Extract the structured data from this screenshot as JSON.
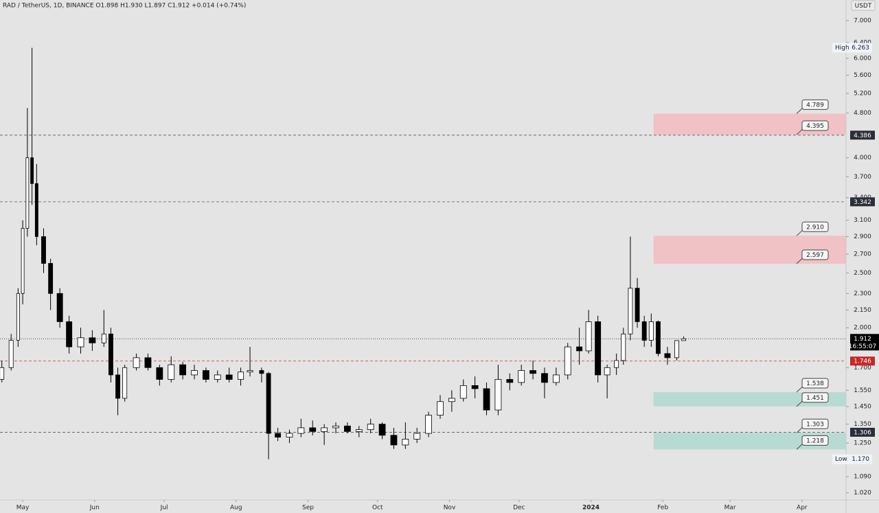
{
  "chart_data": {
    "type": "candlestick",
    "title": "RAD / TetherUS, 1D, BINANCE  O1.898 H1.930 L1.897 C1.912 +0.014 (+0.74%)",
    "y_unit": "USDT",
    "log_scale": true,
    "up_color": "#ffffff",
    "down_color": "#000000",
    "wick_color": "#000000",
    "x": [
      -9,
      -5,
      -2,
      0,
      2,
      4,
      6,
      9,
      12,
      16,
      20,
      25,
      30,
      35,
      38,
      41,
      44,
      49,
      54,
      59,
      64,
      69,
      74,
      79,
      84,
      89,
      94,
      98,
      103,
      106,
      110,
      115,
      120,
      125,
      130,
      135,
      140,
      145,
      150,
      155,
      160,
      165,
      170,
      175,
      180,
      185,
      190,
      195,
      200,
      205,
      210,
      215,
      220,
      225,
      230,
      235,
      240,
      244,
      248,
      252,
      256,
      259,
      262,
      265,
      268,
      271,
      274,
      278,
      282,
      285
    ],
    "open": [
      1.62,
      1.7,
      1.9,
      2.3,
      3.0,
      4.0,
      3.6,
      2.9,
      2.6,
      2.3,
      2.05,
      1.85,
      1.92,
      1.88,
      1.95,
      1.65,
      1.5,
      1.7,
      1.77,
      1.7,
      1.62,
      1.72,
      1.65,
      1.68,
      1.62,
      1.65,
      1.62,
      1.67,
      1.68,
      1.66,
      1.3,
      1.28,
      1.3,
      1.33,
      1.31,
      1.33,
      1.34,
      1.31,
      1.32,
      1.35,
      1.29,
      1.24,
      1.27,
      1.3,
      1.4,
      1.48,
      1.5,
      1.58,
      1.56,
      1.43,
      1.62,
      1.6,
      1.68,
      1.66,
      1.6,
      1.65,
      1.85,
      1.82,
      2.05,
      1.65,
      1.7,
      1.75,
      1.95,
      2.35,
      2.05,
      1.9,
      2.05,
      1.8,
      1.77,
      1.898
    ],
    "high": [
      1.75,
      1.95,
      2.35,
      3.1,
      4.9,
      6.263,
      3.9,
      3.0,
      2.65,
      2.35,
      2.1,
      2.0,
      1.98,
      2.15,
      2.0,
      1.7,
      1.72,
      1.8,
      1.8,
      1.72,
      1.78,
      1.74,
      1.72,
      1.7,
      1.68,
      1.7,
      1.7,
      1.85,
      1.7,
      1.67,
      1.33,
      1.32,
      1.38,
      1.37,
      1.35,
      1.36,
      1.36,
      1.34,
      1.38,
      1.36,
      1.33,
      1.36,
      1.33,
      1.42,
      1.52,
      1.55,
      1.62,
      1.64,
      1.6,
      1.72,
      1.66,
      1.72,
      1.75,
      1.7,
      1.7,
      1.88,
      2.0,
      2.15,
      2.1,
      1.72,
      1.8,
      2.0,
      2.9,
      2.45,
      2.1,
      2.12,
      2.06,
      1.85,
      1.9,
      1.93
    ],
    "low": [
      1.6,
      1.68,
      1.85,
      2.2,
      2.9,
      3.3,
      2.8,
      2.5,
      2.15,
      2.0,
      1.8,
      1.8,
      1.82,
      1.85,
      1.6,
      1.4,
      1.48,
      1.68,
      1.68,
      1.58,
      1.6,
      1.62,
      1.62,
      1.6,
      1.6,
      1.6,
      1.58,
      1.64,
      1.6,
      1.17,
      1.26,
      1.25,
      1.28,
      1.29,
      1.24,
      1.3,
      1.3,
      1.28,
      1.3,
      1.27,
      1.22,
      1.22,
      1.25,
      1.28,
      1.38,
      1.42,
      1.48,
      1.5,
      1.4,
      1.4,
      1.55,
      1.58,
      1.62,
      1.5,
      1.58,
      1.62,
      1.72,
      1.8,
      1.6,
      1.5,
      1.65,
      1.72,
      1.9,
      2.0,
      1.85,
      1.85,
      1.78,
      1.72,
      1.75,
      1.897
    ],
    "close": [
      1.7,
      1.9,
      2.3,
      3.0,
      4.0,
      3.6,
      2.9,
      2.6,
      2.3,
      2.05,
      1.85,
      1.92,
      1.88,
      1.95,
      1.65,
      1.5,
      1.7,
      1.77,
      1.7,
      1.62,
      1.72,
      1.65,
      1.68,
      1.62,
      1.65,
      1.62,
      1.67,
      1.68,
      1.66,
      1.3,
      1.28,
      1.3,
      1.33,
      1.31,
      1.33,
      1.34,
      1.31,
      1.32,
      1.35,
      1.29,
      1.24,
      1.27,
      1.3,
      1.4,
      1.48,
      1.5,
      1.58,
      1.56,
      1.43,
      1.62,
      1.6,
      1.68,
      1.66,
      1.6,
      1.65,
      1.85,
      1.82,
      2.05,
      1.65,
      1.7,
      1.75,
      1.95,
      2.35,
      2.05,
      1.9,
      2.05,
      1.8,
      1.77,
      1.898,
      1.912
    ],
    "xlim": [
      -9.8,
      355
    ],
    "ylim": [
      0.991,
      7.61
    ],
    "xticks": [
      {
        "value": 0,
        "label": "May"
      },
      {
        "value": 31,
        "label": "Jun"
      },
      {
        "value": 61,
        "label": "Jul"
      },
      {
        "value": 92,
        "label": "Aug"
      },
      {
        "value": 123,
        "label": "Sep"
      },
      {
        "value": 153,
        "label": "Oct"
      },
      {
        "value": 184,
        "label": "Nov"
      },
      {
        "value": 214,
        "label": "Dec"
      },
      {
        "value": 245,
        "label": "2024"
      },
      {
        "value": 276,
        "label": "Feb"
      },
      {
        "value": 305,
        "label": "Mar"
      },
      {
        "value": 336,
        "label": "Apr"
      }
    ],
    "yticks": [
      {
        "value": 7,
        "label": "7.000"
      },
      {
        "value": 6.4,
        "label": "6.400"
      },
      {
        "value": 6,
        "label": "6.000"
      },
      {
        "value": 5.6,
        "label": "5.600"
      },
      {
        "value": 5.2,
        "label": "5.200"
      },
      {
        "value": 4.8,
        "label": "4.800"
      },
      {
        "value": 4,
        "label": "4.000"
      },
      {
        "value": 3.7,
        "label": "3.700"
      },
      {
        "value": 3.4,
        "label": "3.400"
      },
      {
        "value": 3.1,
        "label": "3.100"
      },
      {
        "value": 2.9,
        "label": "2.900"
      },
      {
        "value": 2.7,
        "label": "2.700"
      },
      {
        "value": 2.5,
        "label": "2.500"
      },
      {
        "value": 2.3,
        "label": "2.300"
      },
      {
        "value": 2.15,
        "label": "2.150"
      },
      {
        "value": 2,
        "label": "2.000"
      },
      {
        "value": 1.7,
        "label": "1.700"
      },
      {
        "value": 1.55,
        "label": "1.550"
      },
      {
        "value": 1.45,
        "label": "1.450"
      },
      {
        "value": 1.35,
        "label": "1.350"
      },
      {
        "value": 1.25,
        "label": "1.250"
      },
      {
        "value": 1.09,
        "label": "1.090"
      },
      {
        "value": 1.02,
        "label": "1.020"
      }
    ],
    "horizontal_lines": [
      {
        "value": 4.386,
        "color": "#555555",
        "label_bg": "#2a2e39"
      },
      {
        "value": 3.342,
        "color": "#555555",
        "label_bg": "#2a2e39"
      },
      {
        "value": 1.746,
        "color": "#d32f2f",
        "label_bg": "#c62828"
      },
      {
        "value": 1.306,
        "color": "#555555",
        "label_bg": "#2a2e39"
      }
    ],
    "last_price": {
      "value": 1.912,
      "countdown": "16:55:07"
    },
    "high_marker": {
      "label": "High",
      "value": 6.263
    },
    "low_marker": {
      "label": "Low",
      "value": 1.17,
      "value_label": "1.170"
    },
    "zones": [
      {
        "x_start": 272,
        "values": [
          4.395,
          4.789
        ],
        "value_labels": [
          "4.395",
          "4.789"
        ],
        "color": "#f4b6bb"
      },
      {
        "x_start": 272,
        "values": [
          2.597,
          2.91
        ],
        "value_labels": [
          "2.597",
          "2.910"
        ],
        "color": "#f4b6bb"
      },
      {
        "x_start": 272,
        "values": [
          1.451,
          1.538
        ],
        "value_labels": [
          "1.451",
          "1.538"
        ],
        "color": "#a8d8cc"
      },
      {
        "x_start": 272,
        "values": [
          1.218,
          1.303
        ],
        "value_labels": [
          "1.218",
          "1.303"
        ],
        "color": "#a8d8cc"
      }
    ]
  }
}
